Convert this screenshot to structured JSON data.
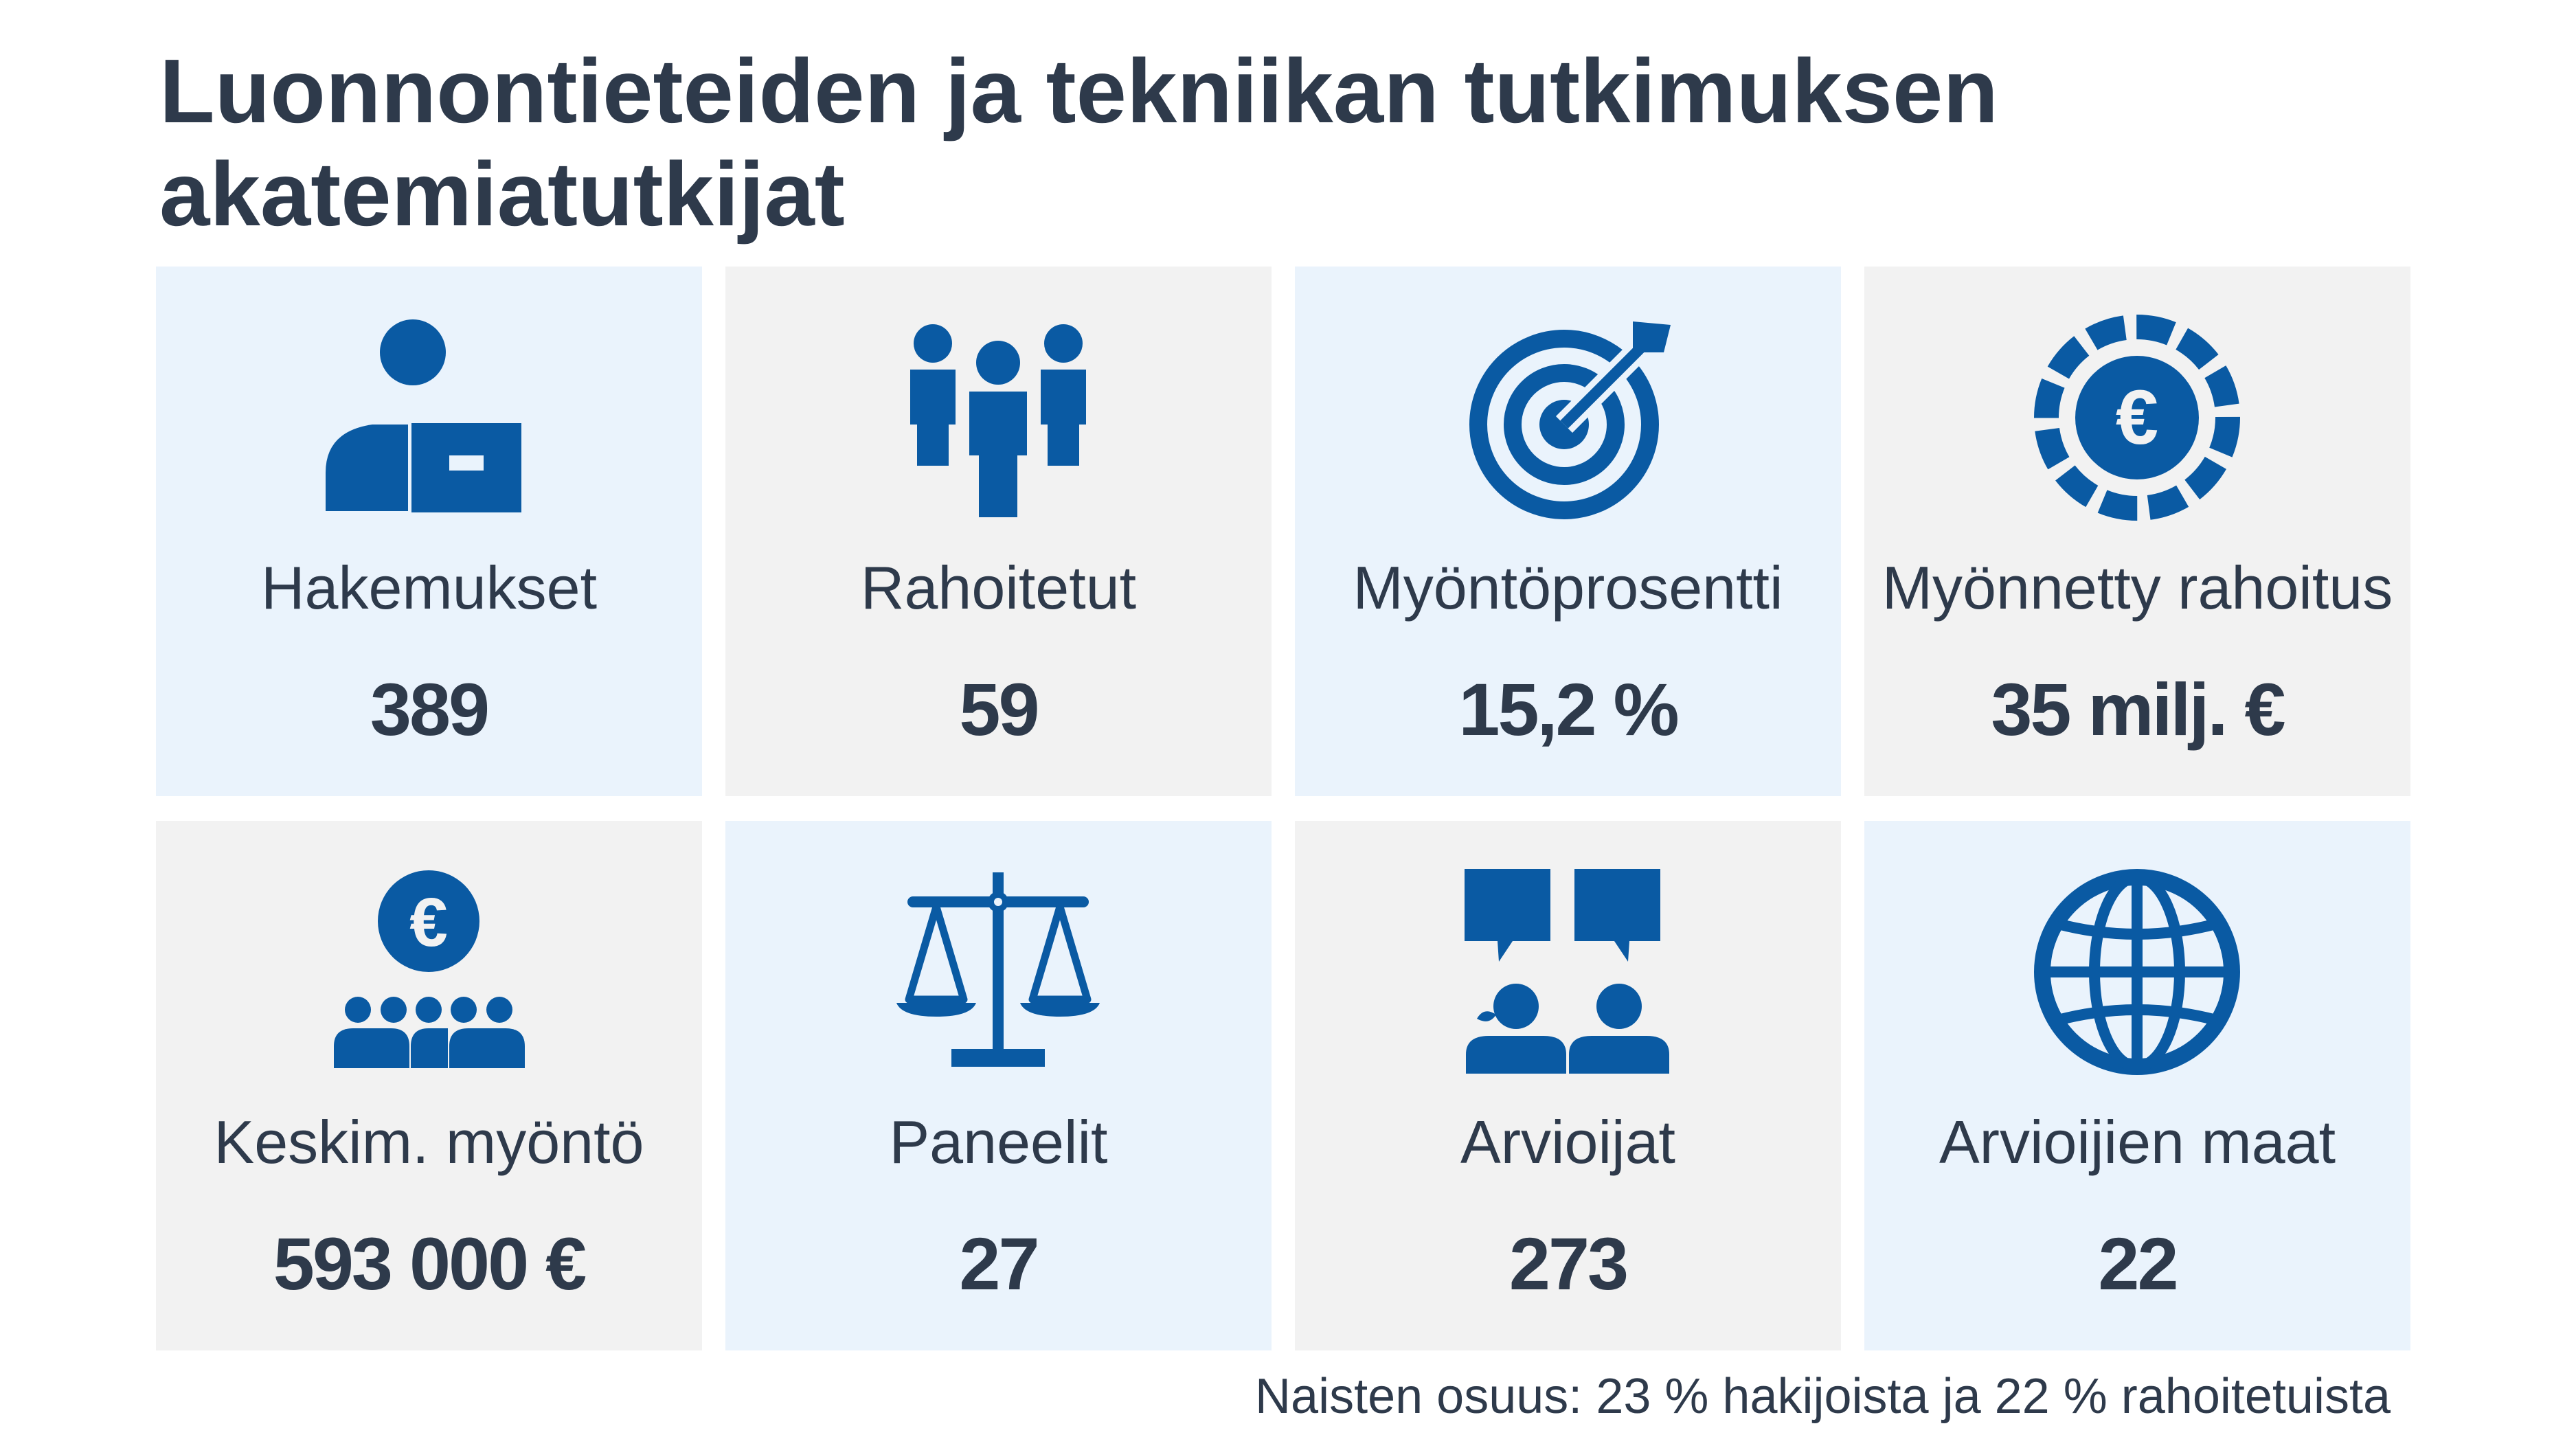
{
  "title": "Luonnontieteiden ja tekniikan tutkimuksen akatemiatutkijat",
  "colors": {
    "icon": "#0a5aa3",
    "text": "#2e3a4b",
    "tile_blue": "#eaf3fc",
    "tile_gray": "#f2f2f2"
  },
  "tiles": [
    {
      "icon": "person-with-briefcase-icon",
      "label": "Hakemukset",
      "value": "389"
    },
    {
      "icon": "group-of-people-icon",
      "label": "Rahoitetut",
      "value": "59"
    },
    {
      "icon": "target-with-arrow-icon",
      "label": "Myöntöprosentti",
      "value": "15,2 %"
    },
    {
      "icon": "euro-coin-icon",
      "label": "Myönnetty rahoitus",
      "value": "35 milj. €"
    },
    {
      "icon": "euro-over-people-icon",
      "label": "Keskim. myöntö",
      "value": "593 000 €"
    },
    {
      "icon": "scales-of-justice-icon",
      "label": "Paneelit",
      "value": "27"
    },
    {
      "icon": "people-with-speech-bubbles-icon",
      "label": "Arvioijat",
      "value": "273"
    },
    {
      "icon": "globe-icon",
      "label": "Arvioijien maat",
      "value": "22"
    }
  ],
  "footnote": "Naisten osuus: 23 % hakijoista ja 22 % rahoitetuista"
}
